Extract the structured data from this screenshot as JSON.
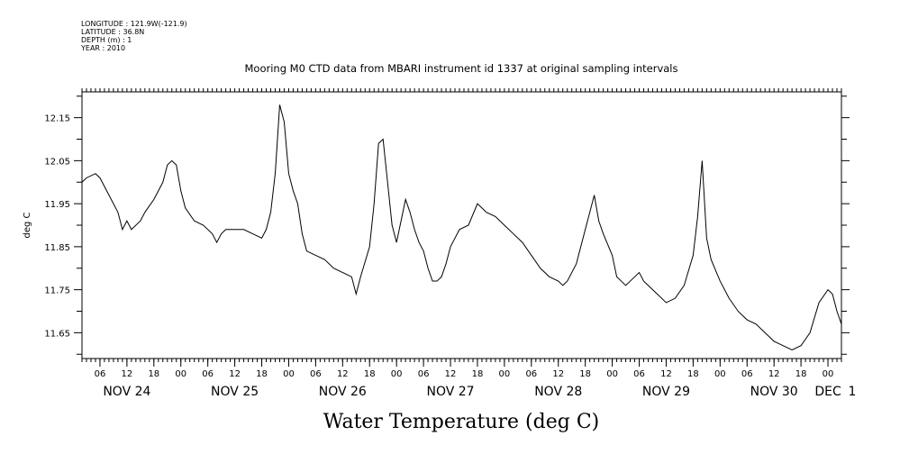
{
  "header": {
    "longitude": "LONGITUDE : 121.9W(-121.9)",
    "latitude": "LATITUDE : 36.8N",
    "depth": "DEPTH (m) : 1",
    "year": "YEAR : 2010"
  },
  "chart_data": {
    "type": "line",
    "title": "Mooring M0 CTD data from MBARI instrument id 1337 at original sampling intervals",
    "xlabel": "Water Temperature (deg C)",
    "ylabel": "deg C",
    "ylim": [
      11.59,
      12.21
    ],
    "yticks": [
      "11.65",
      "11.75",
      "11.85",
      "11.95",
      "12.05",
      "12.15"
    ],
    "xlim": [
      "2010-11-24 02:00",
      "2010-12-01 03:00"
    ],
    "hour_ticks": [
      "06",
      "12",
      "18",
      "00",
      "06",
      "12",
      "18",
      "00",
      "06",
      "12",
      "18",
      "00",
      "06",
      "12",
      "18",
      "00",
      "06",
      "12",
      "18",
      "00",
      "06",
      "12",
      "18",
      "00",
      "06",
      "12",
      "18",
      "00"
    ],
    "day_labels": [
      "NOV 24",
      "NOV 25",
      "NOV 26",
      "NOV 27",
      "NOV 28",
      "NOV 29",
      "NOV 30",
      "DEC",
      "1"
    ],
    "grid": false,
    "legend": "none",
    "line_color": "#000000",
    "series": [
      {
        "x": [
          "2010-11-24 02:00",
          "2010-11-24 03:00",
          "2010-11-24 05:00",
          "2010-11-24 06:00",
          "2010-11-24 07:00",
          "2010-11-24 09:00",
          "2010-11-24 10:00",
          "2010-11-24 11:00",
          "2010-11-24 12:00",
          "2010-11-24 13:00",
          "2010-11-24 15:00",
          "2010-11-24 16:00",
          "2010-11-24 18:00",
          "2010-11-24 20:00",
          "2010-11-24 21:00",
          "2010-11-24 22:00",
          "2010-11-24 23:00",
          "2010-11-25 00:00",
          "2010-11-25 01:00",
          "2010-11-25 03:00",
          "2010-11-25 05:00",
          "2010-11-25 07:00",
          "2010-11-25 08:00",
          "2010-11-25 09:00",
          "2010-11-25 10:00",
          "2010-11-25 12:00",
          "2010-11-25 14:00",
          "2010-11-25 16:00",
          "2010-11-25 18:00",
          "2010-11-25 19:00",
          "2010-11-25 20:00",
          "2010-11-25 21:00",
          "2010-11-25 22:00",
          "2010-11-25 23:00",
          "2010-11-26 00:00",
          "2010-11-26 01:00",
          "2010-11-26 02:00",
          "2010-11-26 03:00",
          "2010-11-26 04:00",
          "2010-11-26 06:00",
          "2010-11-26 08:00",
          "2010-11-26 10:00",
          "2010-11-26 12:00",
          "2010-11-26 14:00",
          "2010-11-26 15:00",
          "2010-11-26 16:00",
          "2010-11-26 18:00",
          "2010-11-26 19:00",
          "2010-11-26 20:00",
          "2010-11-26 21:00",
          "2010-11-26 22:00",
          "2010-11-26 23:00",
          "2010-11-27 00:00",
          "2010-11-27 01:00",
          "2010-11-27 02:00",
          "2010-11-27 03:00",
          "2010-11-27 04:00",
          "2010-11-27 05:00",
          "2010-11-27 06:00",
          "2010-11-27 07:00",
          "2010-11-27 08:00",
          "2010-11-27 09:00",
          "2010-11-27 10:00",
          "2010-11-27 11:00",
          "2010-11-27 12:00",
          "2010-11-27 14:00",
          "2010-11-27 16:00",
          "2010-11-27 18:00",
          "2010-11-27 19:00",
          "2010-11-27 20:00",
          "2010-11-27 22:00",
          "2010-11-28 00:00",
          "2010-11-28 02:00",
          "2010-11-28 04:00",
          "2010-11-28 06:00",
          "2010-11-28 08:00",
          "2010-11-28 10:00",
          "2010-11-28 12:00",
          "2010-11-28 13:00",
          "2010-11-28 14:00",
          "2010-11-28 16:00",
          "2010-11-28 18:00",
          "2010-11-28 19:00",
          "2010-11-28 20:00",
          "2010-11-28 21:00",
          "2010-11-28 22:00",
          "2010-11-29 00:00",
          "2010-11-29 01:00",
          "2010-11-29 02:00",
          "2010-11-29 03:00",
          "2010-11-29 04:00",
          "2010-11-29 06:00",
          "2010-11-29 07:00",
          "2010-11-29 08:00",
          "2010-11-29 10:00",
          "2010-11-29 12:00",
          "2010-11-29 14:00",
          "2010-11-29 16:00",
          "2010-11-29 18:00",
          "2010-11-29 19:00",
          "2010-11-29 20:00",
          "2010-11-29 21:00",
          "2010-11-29 22:00",
          "2010-11-30 00:00",
          "2010-11-30 02:00",
          "2010-11-30 04:00",
          "2010-11-30 06:00",
          "2010-11-30 08:00",
          "2010-11-30 10:00",
          "2010-11-30 12:00",
          "2010-11-30 14:00",
          "2010-11-30 16:00",
          "2010-11-30 18:00",
          "2010-11-30 20:00",
          "2010-11-30 22:00",
          "2010-12-01 00:00",
          "2010-12-01 01:00",
          "2010-12-01 02:00",
          "2010-12-01 03:00"
        ],
        "y": [
          12.0,
          12.01,
          12.02,
          12.01,
          11.99,
          11.95,
          11.93,
          11.89,
          11.91,
          11.89,
          11.91,
          11.93,
          11.96,
          12.0,
          12.04,
          12.05,
          12.04,
          11.98,
          11.94,
          11.91,
          11.9,
          11.88,
          11.86,
          11.88,
          11.89,
          11.89,
          11.89,
          11.88,
          11.87,
          11.89,
          11.93,
          12.02,
          12.18,
          12.14,
          12.02,
          11.98,
          11.95,
          11.88,
          11.84,
          11.83,
          11.82,
          11.8,
          11.79,
          11.78,
          11.74,
          11.78,
          11.85,
          11.95,
          12.09,
          12.1,
          12.0,
          11.9,
          11.86,
          11.91,
          11.96,
          11.93,
          11.89,
          11.86,
          11.84,
          11.8,
          11.77,
          11.77,
          11.78,
          11.81,
          11.85,
          11.89,
          11.9,
          11.95,
          11.94,
          11.93,
          11.92,
          11.9,
          11.88,
          11.86,
          11.83,
          11.8,
          11.78,
          11.77,
          11.76,
          11.77,
          11.81,
          11.89,
          11.93,
          11.97,
          11.91,
          11.88,
          11.83,
          11.78,
          11.77,
          11.76,
          11.77,
          11.79,
          11.77,
          11.76,
          11.74,
          11.72,
          11.73,
          11.76,
          11.83,
          11.92,
          12.05,
          11.87,
          11.82,
          11.77,
          11.73,
          11.7,
          11.68,
          11.67,
          11.65,
          11.63,
          11.62,
          11.61,
          11.62,
          11.65,
          11.72,
          11.75,
          11.74,
          11.7,
          11.67
        ]
      }
    ]
  }
}
